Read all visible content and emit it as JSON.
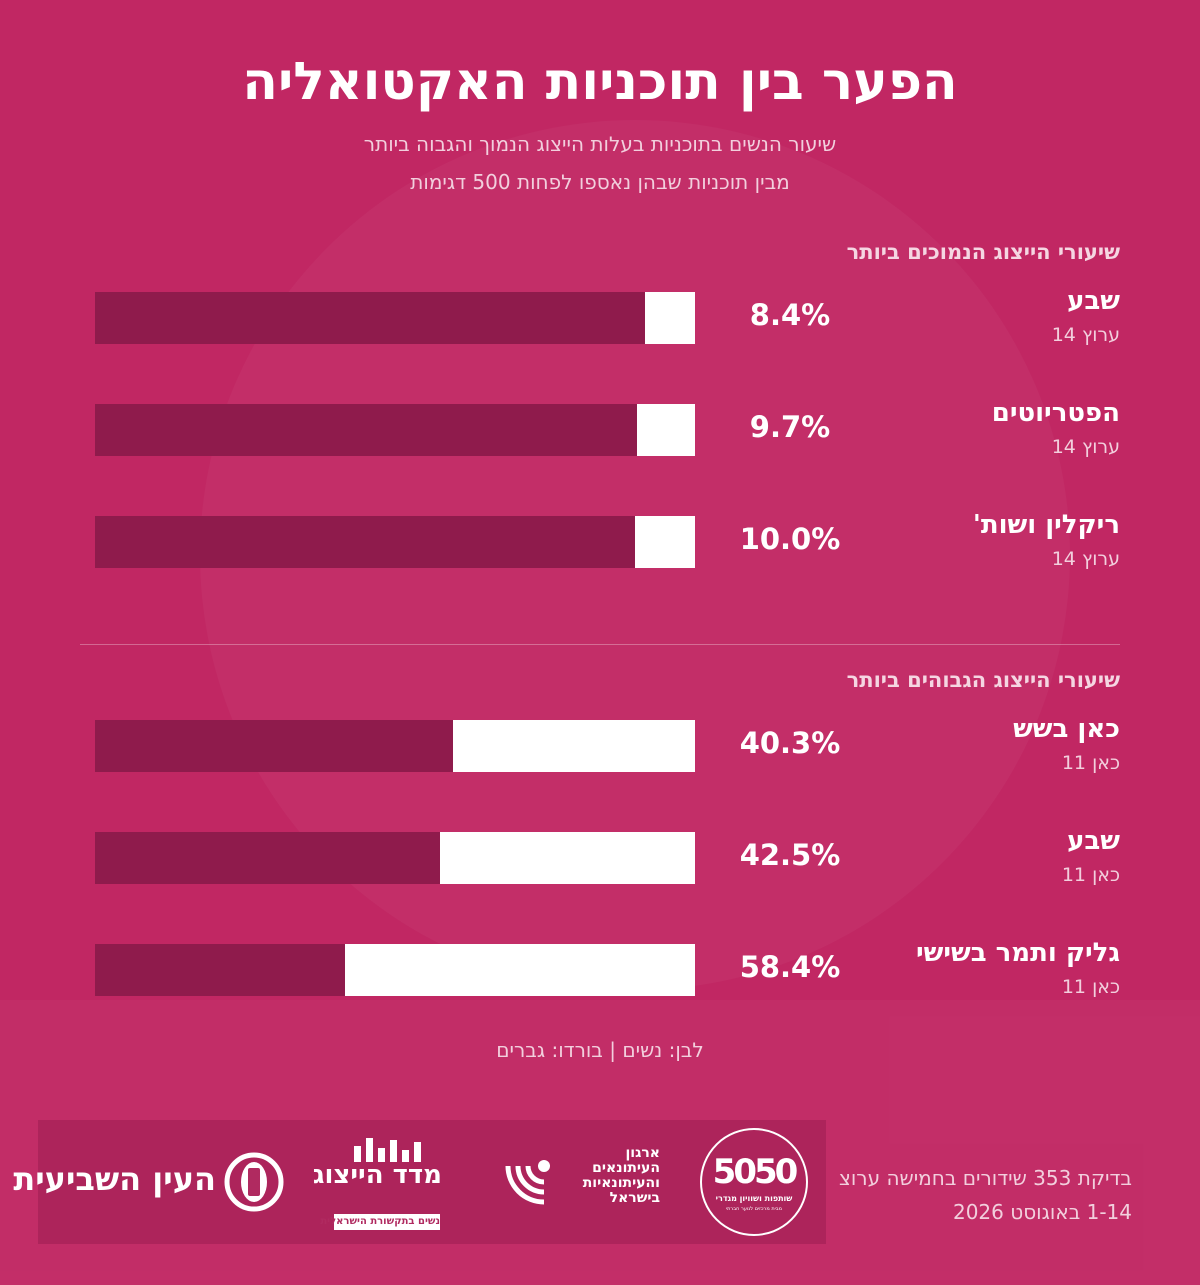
{
  "title": "הפער בין תוכניות האקטואליה",
  "subtitle_lines": [
    "שיעור הנשים בתוכניות בעלות הייצוג הנמוך והגבוה ביותר",
    "מבין תוכניות שבהן נאספו לפחות 500 דגימות"
  ],
  "legend_text": "לבן: נשים | בורדו: גברים",
  "colors": {
    "background": "#c12763",
    "women": "#ffffff",
    "men": "#8f1b4c"
  },
  "chart_data": [
    {
      "type": "bar",
      "orientation": "horizontal-stacked",
      "title": "שיעורי הייצוג הנמוכים ביותר",
      "categories": [
        "שבע",
        "הפטריוטים",
        "ריקלין ושות'"
      ],
      "channels": [
        "ערוץ 14",
        "ערוץ 14",
        "ערוץ 14"
      ],
      "values": [
        8.4,
        9.7,
        10.0
      ],
      "value_labels": [
        "8.4%",
        "9.7%",
        "10.0%"
      ],
      "xlim": [
        0,
        100
      ]
    },
    {
      "type": "bar",
      "orientation": "horizontal-stacked",
      "title": "שיעורי הייצוג הגבוהים ביותר",
      "categories": [
        "כאן בשש",
        "שבע",
        "גליק ותמר בשישי"
      ],
      "channels": [
        "כאן 11",
        "כאן 11",
        "כאן 11"
      ],
      "values": [
        40.3,
        42.5,
        58.4
      ],
      "value_labels": [
        "40.3%",
        "42.5%",
        "58.4%"
      ],
      "xlim": [
        0,
        100
      ]
    }
  ],
  "footer": {
    "source_lines": [
      "בדיקת 353 שידורים בחמישה ערוצ",
      "1-14 באוגוסט 2026"
    ],
    "logos": {
      "ayin": {
        "name": "העין השביעית",
        "icon": "eye-circle-icon"
      },
      "madad": {
        "name": "מדד הייצוג",
        "tagline": "נשים בתקשורת הישראלית"
      },
      "irgun": {
        "lines": [
          "ארגון",
          "העיתונאים",
          "והעיתונאיות",
          "בישראל"
        ],
        "icon": "signal-waves-icon"
      },
      "fiftyfifty": {
        "mark": "5050",
        "tagline": "שותפות ושוויון מגדרי",
        "subtag": "מבית מרכזים לנוער חברתי"
      }
    }
  }
}
